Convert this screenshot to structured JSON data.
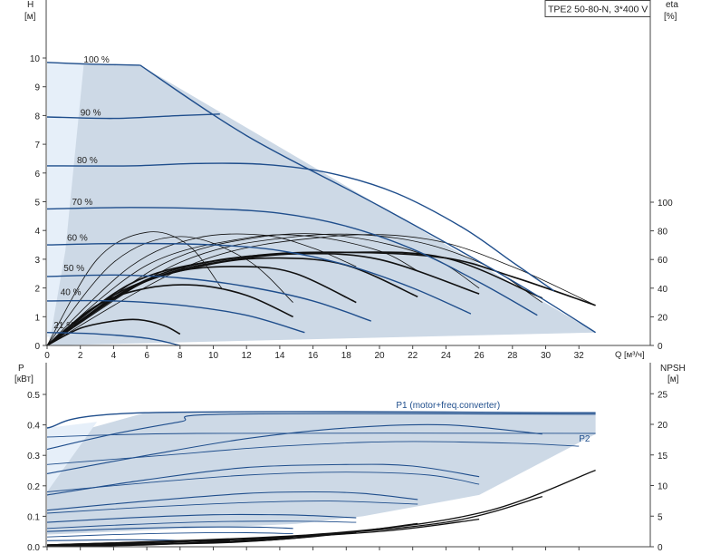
{
  "colors": {
    "fill_region": "#cdd9e6",
    "fill_light": "#e6eff9",
    "curve_blue": "#1f4e8c",
    "curve_black": "#111111",
    "axis": "#444444",
    "text": "#222222"
  },
  "chart_data": [
    {
      "type": "line",
      "title": "TPE2 50-80-N, 3*400 V",
      "ylabel_left": [
        "H",
        "[м]"
      ],
      "ylabel_right": [
        "eta",
        "[%]"
      ],
      "xlabel": "Q [м³/ч]",
      "xlim": [
        0,
        34
      ],
      "ylim": [
        0,
        11
      ],
      "eta_lim": [
        0,
        125
      ],
      "xticks": [
        0,
        2,
        4,
        6,
        8,
        10,
        12,
        14,
        16,
        18,
        20,
        22,
        24,
        26,
        28,
        30,
        32
      ],
      "yticks": [
        0,
        1,
        2,
        3,
        4,
        5,
        6,
        7,
        8,
        9,
        10
      ],
      "eta_ticks": [
        0,
        20,
        40,
        60,
        80,
        100
      ],
      "grid": false,
      "speed_labels": [
        {
          "text": "100 %",
          "q": 2.2,
          "h": 9.75
        },
        {
          "text": "90 %",
          "q": 2.0,
          "h": 7.9
        },
        {
          "text": "80 %",
          "q": 1.8,
          "h": 6.25
        },
        {
          "text": "70 %",
          "q": 1.5,
          "h": 4.8
        },
        {
          "text": "60 %",
          "q": 1.2,
          "h": 3.55
        },
        {
          "text": "50 %",
          "q": 1.0,
          "h": 2.5
        },
        {
          "text": "40 %",
          "q": 0.8,
          "h": 1.65
        },
        {
          "text": "21 %",
          "q": 0.4,
          "h": 0.5
        }
      ],
      "operating_region": [
        [
          0,
          9.85
        ],
        [
          5.6,
          9.75
        ],
        [
          33,
          0.45
        ],
        [
          0.15,
          0.0
        ]
      ],
      "light_region": [
        [
          0,
          9.85
        ],
        [
          2.2,
          9.75
        ],
        [
          1.1,
          3.3
        ],
        [
          0.2,
          0.3
        ],
        [
          0,
          0.3
        ]
      ],
      "qh_curves": [
        {
          "name": "100 %",
          "q": [
            0,
            2,
            4,
            5.6
          ],
          "h": [
            9.85,
            9.8,
            9.77,
            9.75
          ],
          "tail_q": [
            5.6,
            12,
            20,
            28,
            33
          ],
          "tail_h": [
            9.75,
            7.3,
            4.85,
            2.25,
            0.45
          ]
        },
        {
          "name": "90 %",
          "q": [
            0,
            4,
            8,
            10.4
          ],
          "h": [
            7.95,
            7.9,
            8.0,
            8.05
          ]
        },
        {
          "name": "80 %",
          "q": [
            0,
            5,
            9,
            13,
            17,
            21,
            25,
            28,
            30.5
          ],
          "h": [
            6.25,
            6.25,
            6.33,
            6.3,
            6.0,
            5.3,
            4.1,
            2.9,
            1.9
          ]
        },
        {
          "name": "70 %",
          "q": [
            0,
            5,
            10,
            14,
            18,
            22,
            26,
            29.5
          ],
          "h": [
            4.75,
            4.8,
            4.75,
            4.6,
            4.15,
            3.35,
            2.2,
            1.05
          ]
        },
        {
          "name": "60 %",
          "q": [
            0,
            5,
            10,
            14,
            18,
            22,
            25.5
          ],
          "h": [
            3.5,
            3.55,
            3.5,
            3.3,
            2.8,
            2.0,
            1.1
          ]
        },
        {
          "name": "50 %",
          "q": [
            0,
            4,
            8,
            12,
            16,
            19.5
          ],
          "h": [
            2.4,
            2.45,
            2.35,
            2.05,
            1.55,
            0.85
          ]
        },
        {
          "name": "40 %",
          "q": [
            0,
            4,
            8,
            12,
            15.5
          ],
          "h": [
            1.55,
            1.55,
            1.4,
            1.05,
            0.45
          ]
        },
        {
          "name": "21 %",
          "q": [
            0,
            3,
            6,
            8
          ],
          "h": [
            0.45,
            0.4,
            0.25,
            0.0
          ]
        }
      ],
      "eta_curves": [
        {
          "q": [
            0,
            2,
            4,
            5.5,
            7,
            8
          ],
          "eta": [
            0,
            12,
            17,
            18,
            14,
            8
          ]
        },
        {
          "q": [
            0,
            3,
            6,
            9,
            12,
            14.8
          ],
          "eta": [
            0,
            28,
            40,
            42,
            35,
            20
          ]
        },
        {
          "q": [
            0,
            4,
            8,
            12,
            15,
            18.6
          ],
          "eta": [
            0,
            35,
            52,
            55,
            50,
            30
          ]
        },
        {
          "q": [
            0,
            5,
            10,
            14,
            18,
            22.3
          ],
          "eta": [
            0,
            40,
            57,
            61,
            56,
            34
          ]
        },
        {
          "q": [
            0,
            5,
            10,
            15,
            20,
            26
          ],
          "eta": [
            0,
            43,
            59,
            64,
            60,
            36
          ]
        },
        {
          "q": [
            0,
            6,
            12,
            18,
            24,
            29.8
          ],
          "eta": [
            0,
            45,
            61,
            65,
            61,
            33
          ]
        },
        {
          "q": [
            0,
            6,
            12,
            18,
            24,
            28,
            33
          ],
          "eta": [
            0,
            46,
            62,
            65,
            61,
            48,
            28
          ]
        },
        {
          "q": [
            0,
            5,
            9,
            13,
            16,
            18.6
          ],
          "eta": [
            0,
            55,
            75,
            77,
            68,
            55
          ]
        },
        {
          "q": [
            0,
            6,
            12,
            16,
            20,
            22.3
          ],
          "eta": [
            0,
            56,
            75,
            76,
            66,
            52
          ]
        },
        {
          "q": [
            0,
            7,
            13,
            18,
            23,
            26
          ],
          "eta": [
            0,
            57,
            76,
            76,
            62,
            40
          ]
        },
        {
          "q": [
            0,
            8,
            15,
            21,
            26,
            29.8
          ],
          "eta": [
            0,
            58,
            76,
            75,
            58,
            30
          ]
        },
        {
          "q": [
            0,
            9,
            17,
            23,
            28,
            33
          ],
          "eta": [
            0,
            58,
            76,
            74,
            55,
            28
          ]
        },
        {
          "q": [
            0,
            3,
            6,
            8.5,
            10.5
          ],
          "eta": [
            0,
            60,
            79,
            70,
            40
          ]
        },
        {
          "q": [
            0,
            4,
            8,
            12,
            14.8
          ],
          "eta": [
            0,
            58,
            76,
            60,
            30
          ]
        }
      ]
    },
    {
      "type": "line",
      "ylabel_left": [
        "P",
        "[кВт]"
      ],
      "ylabel_right": [
        "NPSH",
        "[м]"
      ],
      "xlim": [
        0,
        34
      ],
      "ylim": [
        0,
        0.5
      ],
      "npsh_lim": [
        0,
        27.5
      ],
      "yticks": [
        0.0,
        0.1,
        0.2,
        0.3,
        0.4,
        0.5
      ],
      "npsh_ticks": [
        0,
        5,
        10,
        15,
        20,
        25
      ],
      "legend": [
        {
          "text": "P1 (motor+freq.converter)",
          "q": 21.0,
          "p": 0.455
        },
        {
          "text": "P2",
          "q": 32.0,
          "p": 0.345
        }
      ],
      "operating_region": [
        [
          0,
          0.35
        ],
        [
          5.9,
          0.44
        ],
        [
          33,
          0.44
        ],
        [
          33,
          0.37
        ],
        [
          26,
          0.17
        ],
        [
          19,
          0.1
        ],
        [
          15,
          0.075
        ],
        [
          0,
          0.04
        ]
      ],
      "p1_curves": [
        {
          "q": [
            0,
            5.9,
            33
          ],
          "p": [
            0.39,
            0.44,
            0.44
          ],
          "w": 1.4
        },
        {
          "q": [
            0,
            4,
            8,
            10.8,
            33
          ],
          "p": [
            0.32,
            0.37,
            0.41,
            0.435,
            0.435
          ],
          "w": 1.1
        },
        {
          "q": [
            0,
            6,
            12,
            18,
            24,
            29.8
          ],
          "p": [
            0.24,
            0.3,
            0.355,
            0.39,
            0.4,
            0.37
          ],
          "w": 1.1
        },
        {
          "q": [
            0,
            6,
            12,
            18,
            22,
            26
          ],
          "p": [
            0.17,
            0.22,
            0.26,
            0.27,
            0.265,
            0.23
          ],
          "w": 1.1
        },
        {
          "q": [
            0,
            6,
            12,
            16,
            19,
            22.3
          ],
          "p": [
            0.12,
            0.15,
            0.175,
            0.18,
            0.175,
            0.155
          ],
          "w": 1.1
        },
        {
          "q": [
            0,
            5,
            10,
            14,
            16,
            18.6
          ],
          "p": [
            0.08,
            0.095,
            0.105,
            0.105,
            0.102,
            0.095
          ],
          "w": 1.1
        },
        {
          "q": [
            0,
            4,
            8,
            11,
            13,
            14.8
          ],
          "p": [
            0.05,
            0.058,
            0.064,
            0.065,
            0.064,
            0.06
          ],
          "w": 1.1
        },
        {
          "q": [
            0,
            3,
            5,
            7,
            8
          ],
          "p": [
            0.02,
            0.022,
            0.023,
            0.022,
            0.02
          ],
          "w": 1.1
        }
      ],
      "p2_curves": [
        {
          "q": [
            0,
            9,
            33
          ],
          "p": [
            0.36,
            0.372,
            0.372
          ]
        },
        {
          "q": [
            0,
            7,
            14,
            21,
            28,
            32
          ],
          "p": [
            0.27,
            0.3,
            0.33,
            0.345,
            0.34,
            0.33
          ]
        },
        {
          "q": [
            0,
            6,
            12,
            18,
            23,
            26
          ],
          "p": [
            0.18,
            0.21,
            0.235,
            0.245,
            0.235,
            0.205
          ]
        },
        {
          "q": [
            0,
            6,
            12,
            17,
            22.3
          ],
          "p": [
            0.11,
            0.13,
            0.145,
            0.15,
            0.14
          ]
        },
        {
          "q": [
            0,
            5,
            10,
            15,
            18.6
          ],
          "p": [
            0.06,
            0.073,
            0.082,
            0.084,
            0.08
          ]
        },
        {
          "q": [
            0,
            4,
            8,
            12,
            14.8
          ],
          "p": [
            0.032,
            0.04,
            0.045,
            0.046,
            0.043
          ]
        }
      ],
      "npsh_curves": [
        {
          "q": [
            0,
            10,
            20,
            26
          ],
          "npsh": [
            0.3,
            1.0,
            2.5,
            4.5
          ]
        },
        {
          "q": [
            0,
            12,
            18,
            22.3
          ],
          "npsh": [
            0.2,
            0.9,
            2.3,
            3.8
          ]
        },
        {
          "q": [
            0,
            14,
            24,
            29.8
          ],
          "npsh": [
            0.3,
            1.6,
            4.0,
            8.2
          ]
        },
        {
          "q": [
            0,
            16,
            26,
            33
          ],
          "npsh": [
            0.3,
            2.0,
            5.5,
            12.5
          ]
        },
        {
          "q": [
            0,
            10,
            15,
            18.6
          ],
          "npsh": [
            0.1,
            0.6,
            1.4,
            2.4
          ]
        },
        {
          "q": [
            0,
            8,
            14.8
          ],
          "npsh": [
            0.1,
            0.5,
            1.5
          ]
        },
        {
          "q": [
            0,
            6,
            11
          ],
          "npsh": [
            0.05,
            0.3,
            1.0
          ]
        }
      ]
    }
  ]
}
